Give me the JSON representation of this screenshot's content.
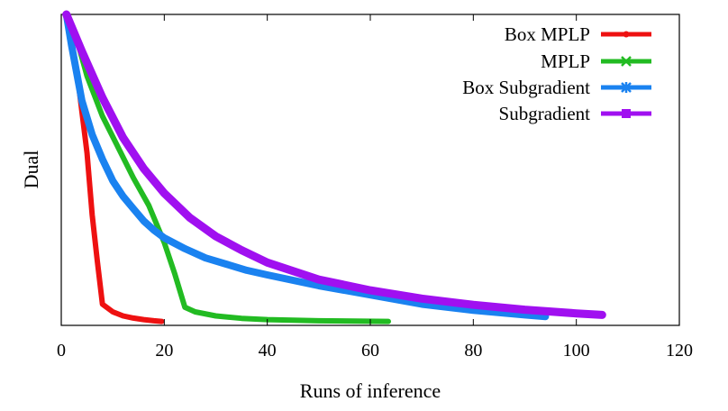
{
  "chart_data": {
    "type": "line",
    "title": "",
    "xlabel": "Runs of inference",
    "ylabel": "Dual",
    "xlim": [
      0,
      120
    ],
    "ylim": [
      0,
      1
    ],
    "xticks": [
      0,
      20,
      40,
      60,
      80,
      100,
      120
    ],
    "yticks": [],
    "grid": false,
    "legend_position": "top-right",
    "series": [
      {
        "name": "Box MPLP",
        "color": "#ee1111",
        "marker": "circle",
        "x": [
          1,
          3,
          5,
          6,
          7,
          8,
          10,
          12,
          14,
          16,
          18,
          19.5
        ],
        "y": [
          1.0,
          0.82,
          0.55,
          0.35,
          0.2,
          0.06,
          0.035,
          0.022,
          0.015,
          0.01,
          0.006,
          0.004
        ]
      },
      {
        "name": "MPLP",
        "color": "#22bb22",
        "marker": "x",
        "x": [
          1,
          3,
          5,
          8,
          11,
          14,
          17,
          20,
          22,
          24,
          26,
          30,
          35,
          40,
          50,
          63.5
        ],
        "y": [
          1.0,
          0.92,
          0.8,
          0.67,
          0.57,
          0.47,
          0.38,
          0.26,
          0.16,
          0.05,
          0.035,
          0.022,
          0.014,
          0.01,
          0.006,
          0.004
        ]
      },
      {
        "name": "Box Subgradient",
        "color": "#1a82f0",
        "marker": "star",
        "x": [
          1,
          2,
          4,
          6,
          8,
          10,
          12,
          14,
          16,
          18,
          20,
          24,
          28,
          32,
          36,
          40,
          50,
          60,
          70,
          80,
          90,
          94
        ],
        "y": [
          1.0,
          0.9,
          0.72,
          0.61,
          0.53,
          0.46,
          0.41,
          0.37,
          0.33,
          0.3,
          0.275,
          0.24,
          0.21,
          0.19,
          0.17,
          0.155,
          0.12,
          0.09,
          0.06,
          0.04,
          0.025,
          0.02
        ]
      },
      {
        "name": "Subgradient",
        "color": "#a010f0",
        "marker": "square",
        "x": [
          1,
          4,
          8,
          12,
          16,
          20,
          25,
          30,
          35,
          40,
          50,
          60,
          70,
          80,
          90,
          100,
          105
        ],
        "y": [
          1.0,
          0.88,
          0.73,
          0.6,
          0.5,
          0.42,
          0.34,
          0.28,
          0.235,
          0.195,
          0.14,
          0.105,
          0.078,
          0.058,
          0.042,
          0.03,
          0.025
        ]
      }
    ]
  }
}
